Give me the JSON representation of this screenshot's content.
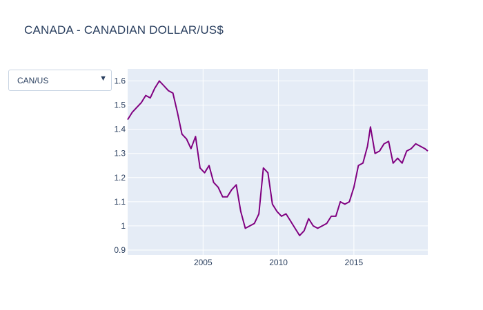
{
  "chart_data": {
    "type": "line",
    "title": "CANADA - CANADIAN DOLLAR/US$",
    "xlabel": "",
    "ylabel": "",
    "xlim": [
      2000,
      2019.9
    ],
    "ylim": [
      0.88,
      1.65
    ],
    "x_ticks": [
      2005,
      2010,
      2015
    ],
    "x_tick_labels": [
      "2005",
      "2010",
      "2015"
    ],
    "y_ticks": [
      0.9,
      1,
      1.1,
      1.2,
      1.3,
      1.4,
      1.5,
      1.6
    ],
    "y_tick_labels": [
      "0.9",
      "1",
      "1.1",
      "1.2",
      "1.3",
      "1.4",
      "1.5",
      "1.6"
    ],
    "grid": true,
    "line_color": "#800080",
    "plot_bg": "#e5ecf6",
    "series": [
      {
        "x": [
          2000.0,
          2000.3,
          2000.6,
          2000.9,
          2001.2,
          2001.5,
          2001.8,
          2002.1,
          2002.4,
          2002.7,
          2003.0,
          2003.3,
          2003.6,
          2003.9,
          2004.2,
          2004.5,
          2004.8,
          2005.1,
          2005.4,
          2005.7,
          2006.0,
          2006.3,
          2006.6,
          2006.9,
          2007.2,
          2007.5,
          2007.8,
          2008.1,
          2008.4,
          2008.7,
          2009.0,
          2009.3,
          2009.6,
          2009.9,
          2010.2,
          2010.5,
          2010.8,
          2011.1,
          2011.4,
          2011.7,
          2012.0,
          2012.3,
          2012.6,
          2012.9,
          2013.2,
          2013.5,
          2013.8,
          2014.1,
          2014.4,
          2014.7,
          2015.0,
          2015.3,
          2015.6,
          2015.9,
          2016.1,
          2016.4,
          2016.7,
          2017.0,
          2017.3,
          2017.6,
          2017.9,
          2018.2,
          2018.5,
          2018.8,
          2019.1,
          2019.4,
          2019.7,
          2019.9
        ],
        "y": [
          1.44,
          1.47,
          1.49,
          1.51,
          1.54,
          1.53,
          1.57,
          1.6,
          1.58,
          1.56,
          1.55,
          1.47,
          1.38,
          1.36,
          1.32,
          1.37,
          1.24,
          1.22,
          1.25,
          1.18,
          1.16,
          1.12,
          1.12,
          1.15,
          1.17,
          1.06,
          0.99,
          1.0,
          1.01,
          1.05,
          1.24,
          1.22,
          1.09,
          1.06,
          1.04,
          1.05,
          1.02,
          0.99,
          0.96,
          0.98,
          1.03,
          1.0,
          0.99,
          1.0,
          1.01,
          1.04,
          1.04,
          1.1,
          1.09,
          1.1,
          1.16,
          1.25,
          1.26,
          1.33,
          1.41,
          1.3,
          1.31,
          1.34,
          1.35,
          1.26,
          1.28,
          1.26,
          1.31,
          1.32,
          1.34,
          1.33,
          1.32,
          1.31
        ]
      }
    ]
  },
  "dropdown": {
    "selected": "CAN/US",
    "arrow": "▼"
  }
}
